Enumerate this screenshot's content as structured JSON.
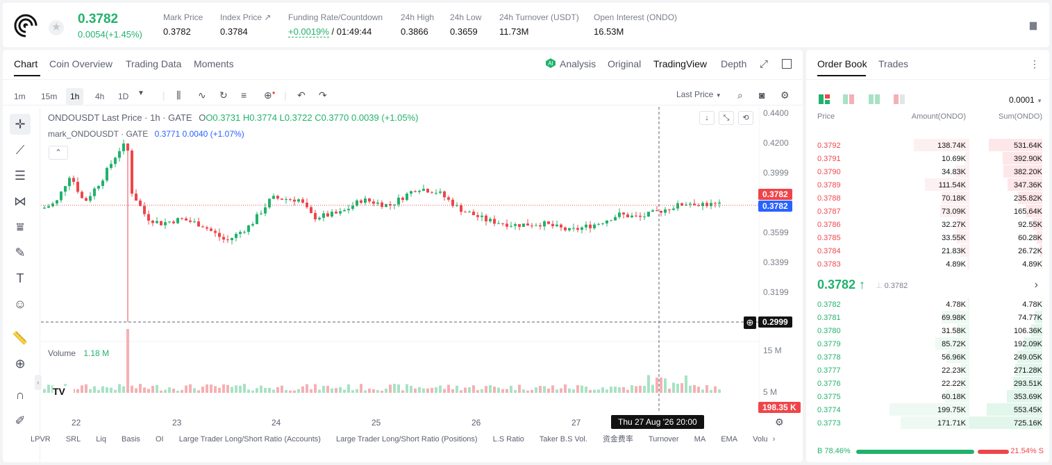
{
  "header": {
    "last_price": "0.3782",
    "change": "0.0054(+1.45%)",
    "stats": [
      {
        "label": "Mark Price",
        "value": "0.3782"
      },
      {
        "label": "Index Price ↗",
        "value": "0.3784"
      },
      {
        "label": "Funding Rate/Countdown",
        "value": "+0.0019%",
        "value2": "/ 01:49:44"
      },
      {
        "label": "24h High",
        "value": "0.3866"
      },
      {
        "label": "24h Low",
        "value": "0.3659"
      },
      {
        "label": "24h Turnover (USDT)",
        "value": "11.73M"
      },
      {
        "label": "Open Interest (ONDO)",
        "value": "16.53M"
      }
    ]
  },
  "chart_panel": {
    "tabs": [
      "Chart",
      "Coin Overview",
      "Trading Data",
      "Moments"
    ],
    "right_tabs": [
      "Analysis",
      "Original",
      "TradingView",
      "Depth"
    ],
    "timeframes": [
      "1m",
      "15m",
      "1h",
      "4h",
      "1D"
    ],
    "price_type": "Last Price",
    "legend_title": "ONDOUSDT Last Price · 1h · GATE",
    "ohlc": {
      "o": "O0.3731",
      "h": "H0.3774",
      "l": "L0.3722",
      "c": "C0.3770",
      "chg": "0.0039 (+1.05%)"
    },
    "mark_legend": "mark_ONDOUSDT · GATE",
    "mark_vals": {
      "v": "0.3771",
      "chg": "0.0040 (+1.07%)"
    },
    "volume_label": "Volume",
    "volume_value": "1.18 M",
    "price_axis": [
      "0.4400",
      "0.4200",
      "0.3999",
      "0.3599",
      "0.3399",
      "0.3199"
    ],
    "vol_axis": [
      "15 M",
      "5 M"
    ],
    "last_tag": "0.3782",
    "mark_tag": "0.3782",
    "cursor_tag": "0.2999",
    "vol_tag": "198.35 K",
    "x_axis": [
      "22",
      "23",
      "24",
      "25",
      "26",
      "27"
    ],
    "crosshair_time": "Thu 27 Aug '26   20:00",
    "indicators": [
      "LPVR",
      "SRL",
      "Liq",
      "Basis",
      "OI",
      "Large Trader Long/Short Ratio (Accounts)",
      "Large Trader Long/Short Ratio (Positions)",
      "L.S Ratio",
      "Taker B.S Vol.",
      "资金费率",
      "Turnover",
      "MA",
      "EMA",
      "Volu"
    ]
  },
  "order_book": {
    "tabs": [
      "Order Book",
      "Trades"
    ],
    "precision": "0.0001",
    "headers": {
      "price": "Price",
      "amount": "Amount(ONDO)",
      "sum": "Sum(ONDO)"
    },
    "asks": [
      {
        "p": "0.3792",
        "a": "138.74K",
        "s": "531.64K",
        "f": 0.73
      },
      {
        "p": "0.3791",
        "a": "10.69K",
        "s": "392.90K",
        "f": 0.54
      },
      {
        "p": "0.3790",
        "a": "34.83K",
        "s": "382.20K",
        "f": 0.53
      },
      {
        "p": "0.3789",
        "a": "111.54K",
        "s": "347.36K",
        "f": 0.48
      },
      {
        "p": "0.3788",
        "a": "70.18K",
        "s": "235.82K",
        "f": 0.33
      },
      {
        "p": "0.3787",
        "a": "73.09K",
        "s": "165.64K",
        "f": 0.23
      },
      {
        "p": "0.3786",
        "a": "32.27K",
        "s": "92.55K",
        "f": 0.13
      },
      {
        "p": "0.3785",
        "a": "33.55K",
        "s": "60.28K",
        "f": 0.08
      },
      {
        "p": "0.3784",
        "a": "21.83K",
        "s": "26.72K",
        "f": 0.04
      },
      {
        "p": "0.3783",
        "a": "4.89K",
        "s": "4.89K",
        "f": 0.01
      }
    ],
    "mid_price": "0.3782 ↑",
    "mid_ref": "0.3782",
    "bids": [
      {
        "p": "0.3782",
        "a": "4.78K",
        "s": "4.78K",
        "f": 0.01
      },
      {
        "p": "0.3781",
        "a": "69.98K",
        "s": "74.77K",
        "f": 0.1
      },
      {
        "p": "0.3780",
        "a": "31.58K",
        "s": "106.36K",
        "f": 0.15
      },
      {
        "p": "0.3779",
        "a": "85.72K",
        "s": "192.09K",
        "f": 0.26
      },
      {
        "p": "0.3778",
        "a": "56.96K",
        "s": "249.05K",
        "f": 0.34
      },
      {
        "p": "0.3777",
        "a": "22.23K",
        "s": "271.28K",
        "f": 0.37
      },
      {
        "p": "0.3776",
        "a": "22.22K",
        "s": "293.51K",
        "f": 0.4
      },
      {
        "p": "0.3775",
        "a": "60.18K",
        "s": "353.69K",
        "f": 0.49
      },
      {
        "p": "0.3774",
        "a": "199.75K",
        "s": "553.45K",
        "f": 0.76
      },
      {
        "p": "0.3773",
        "a": "171.71K",
        "s": "725.16K",
        "f": 1.0
      }
    ],
    "buy_ratio": "B 78.46%",
    "sell_ratio": "21.54% S",
    "buy_frac": 0.7846
  },
  "colors": {
    "up": "#20b26c",
    "down": "#ef454a",
    "blue": "#2962ff"
  }
}
